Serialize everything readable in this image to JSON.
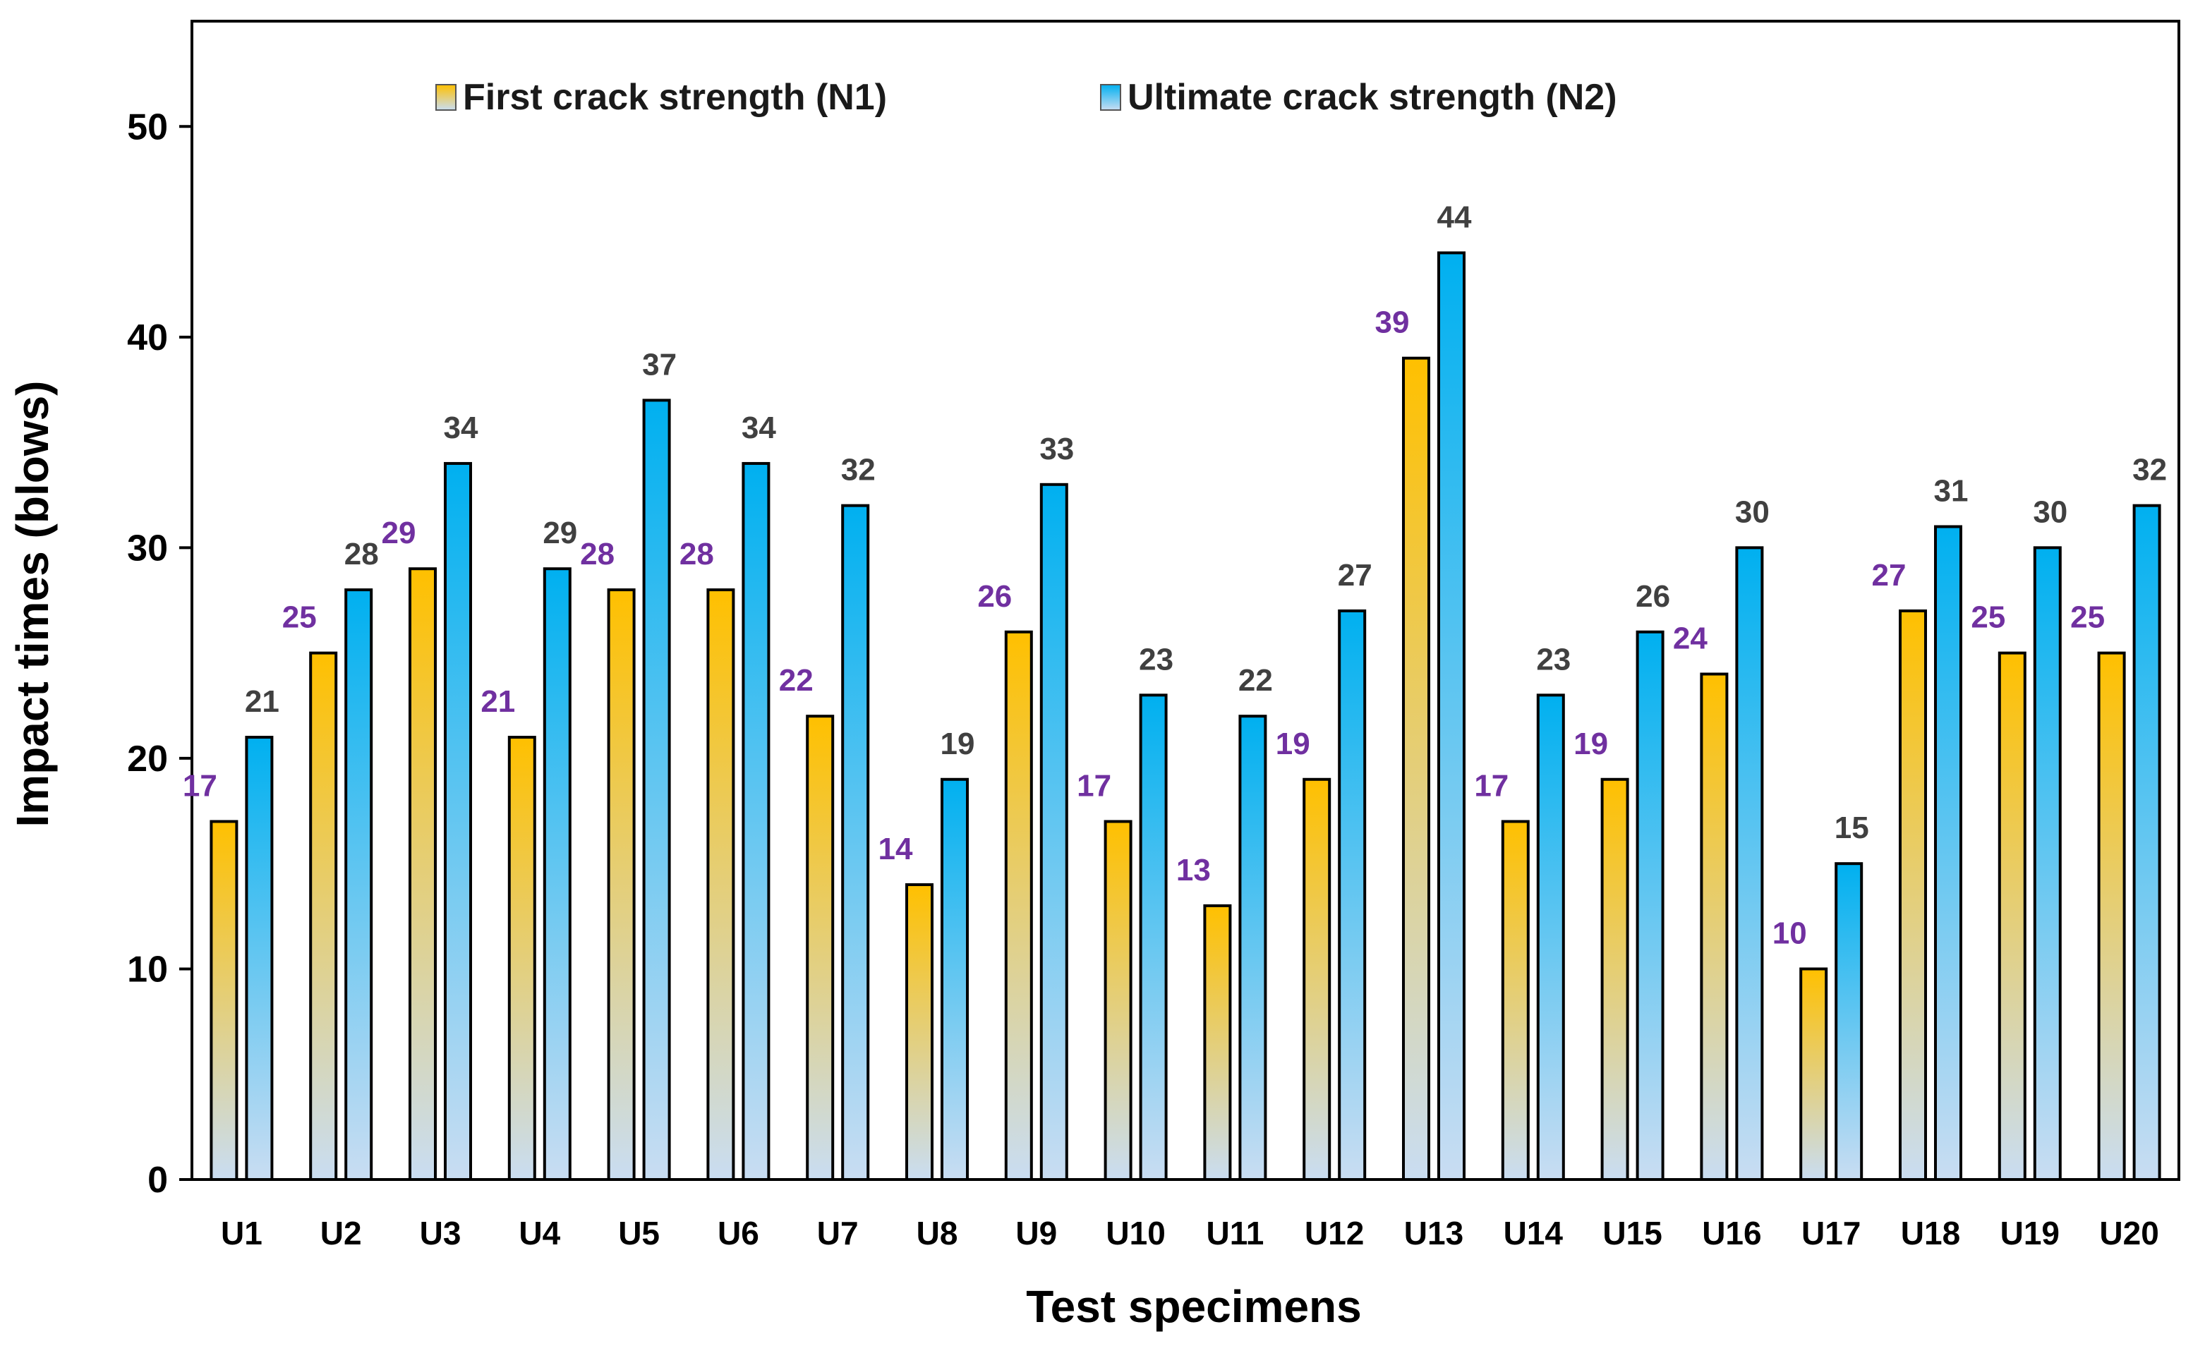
{
  "chart_data": {
    "type": "bar",
    "title": "",
    "xlabel": "Test specimens",
    "ylabel": "Impact times (blows)",
    "ylim": [
      0,
      55
    ],
    "yticks": [
      0,
      10,
      20,
      30,
      40,
      50
    ],
    "grid": false,
    "legend_position": "top",
    "categories": [
      "U1",
      "U2",
      "U3",
      "U4",
      "U5",
      "U6",
      "U7",
      "U8",
      "U9",
      "U10",
      "U11",
      "U12",
      "U13",
      "U14",
      "U15",
      "U16",
      "U17",
      "U18",
      "U19",
      "U20"
    ],
    "series": [
      {
        "name": "First crack strength (N1)",
        "values": [
          17,
          25,
          29,
          21,
          28,
          28,
          22,
          14,
          26,
          17,
          13,
          19,
          39,
          17,
          19,
          24,
          10,
          27,
          25,
          25
        ],
        "color_top": "#ffc000",
        "color_bottom": "#c9ddf2",
        "label_color": "#7030a0"
      },
      {
        "name": "Ultimate crack strength (N2)",
        "values": [
          21,
          28,
          34,
          29,
          37,
          34,
          32,
          19,
          33,
          23,
          22,
          27,
          44,
          23,
          26,
          30,
          15,
          31,
          30,
          32
        ],
        "color_top": "#00b0f0",
        "color_bottom": "#c9ddf2",
        "label_color": "#404040"
      }
    ]
  }
}
